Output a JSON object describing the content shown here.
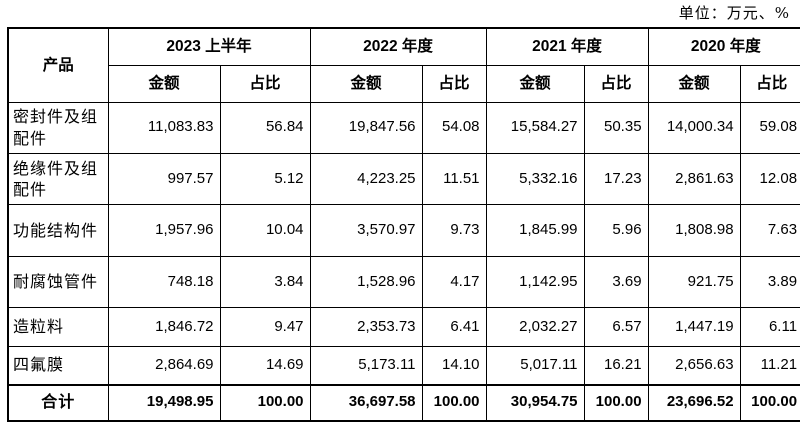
{
  "unit_label": "单位：万元、%",
  "table": {
    "product_header": "产品",
    "periods": [
      "2023 上半年",
      "2022 年度",
      "2021 年度",
      "2020 年度"
    ],
    "amount_label": "金额",
    "ratio_label": "占比",
    "rows": [
      {
        "product": "密封件及组配件",
        "values": [
          "11,083.83",
          "56.84",
          "19,847.56",
          "54.08",
          "15,584.27",
          "50.35",
          "14,000.34",
          "59.08"
        ]
      },
      {
        "product": "绝缘件及组配件",
        "values": [
          "997.57",
          "5.12",
          "4,223.25",
          "11.51",
          "5,332.16",
          "17.23",
          "2,861.63",
          "12.08"
        ]
      },
      {
        "product": "功能结构件",
        "values": [
          "1,957.96",
          "10.04",
          "3,570.97",
          "9.73",
          "1,845.99",
          "5.96",
          "1,808.98",
          "7.63"
        ]
      },
      {
        "product": "耐腐蚀管件",
        "values": [
          "748.18",
          "3.84",
          "1,528.96",
          "4.17",
          "1,142.95",
          "3.69",
          "921.75",
          "3.89"
        ]
      },
      {
        "product": "造粒料",
        "values": [
          "1,846.72",
          "9.47",
          "2,353.73",
          "6.41",
          "2,032.27",
          "6.57",
          "1,447.19",
          "6.11"
        ]
      },
      {
        "product": "四氟膜",
        "values": [
          "2,864.69",
          "14.69",
          "5,173.11",
          "14.10",
          "5,017.11",
          "16.21",
          "2,656.63",
          "11.21"
        ]
      }
    ],
    "total": {
      "product": "合计",
      "values": [
        "19,498.95",
        "100.00",
        "36,697.58",
        "100.00",
        "30,954.75",
        "100.00",
        "23,696.52",
        "100.00"
      ]
    }
  }
}
